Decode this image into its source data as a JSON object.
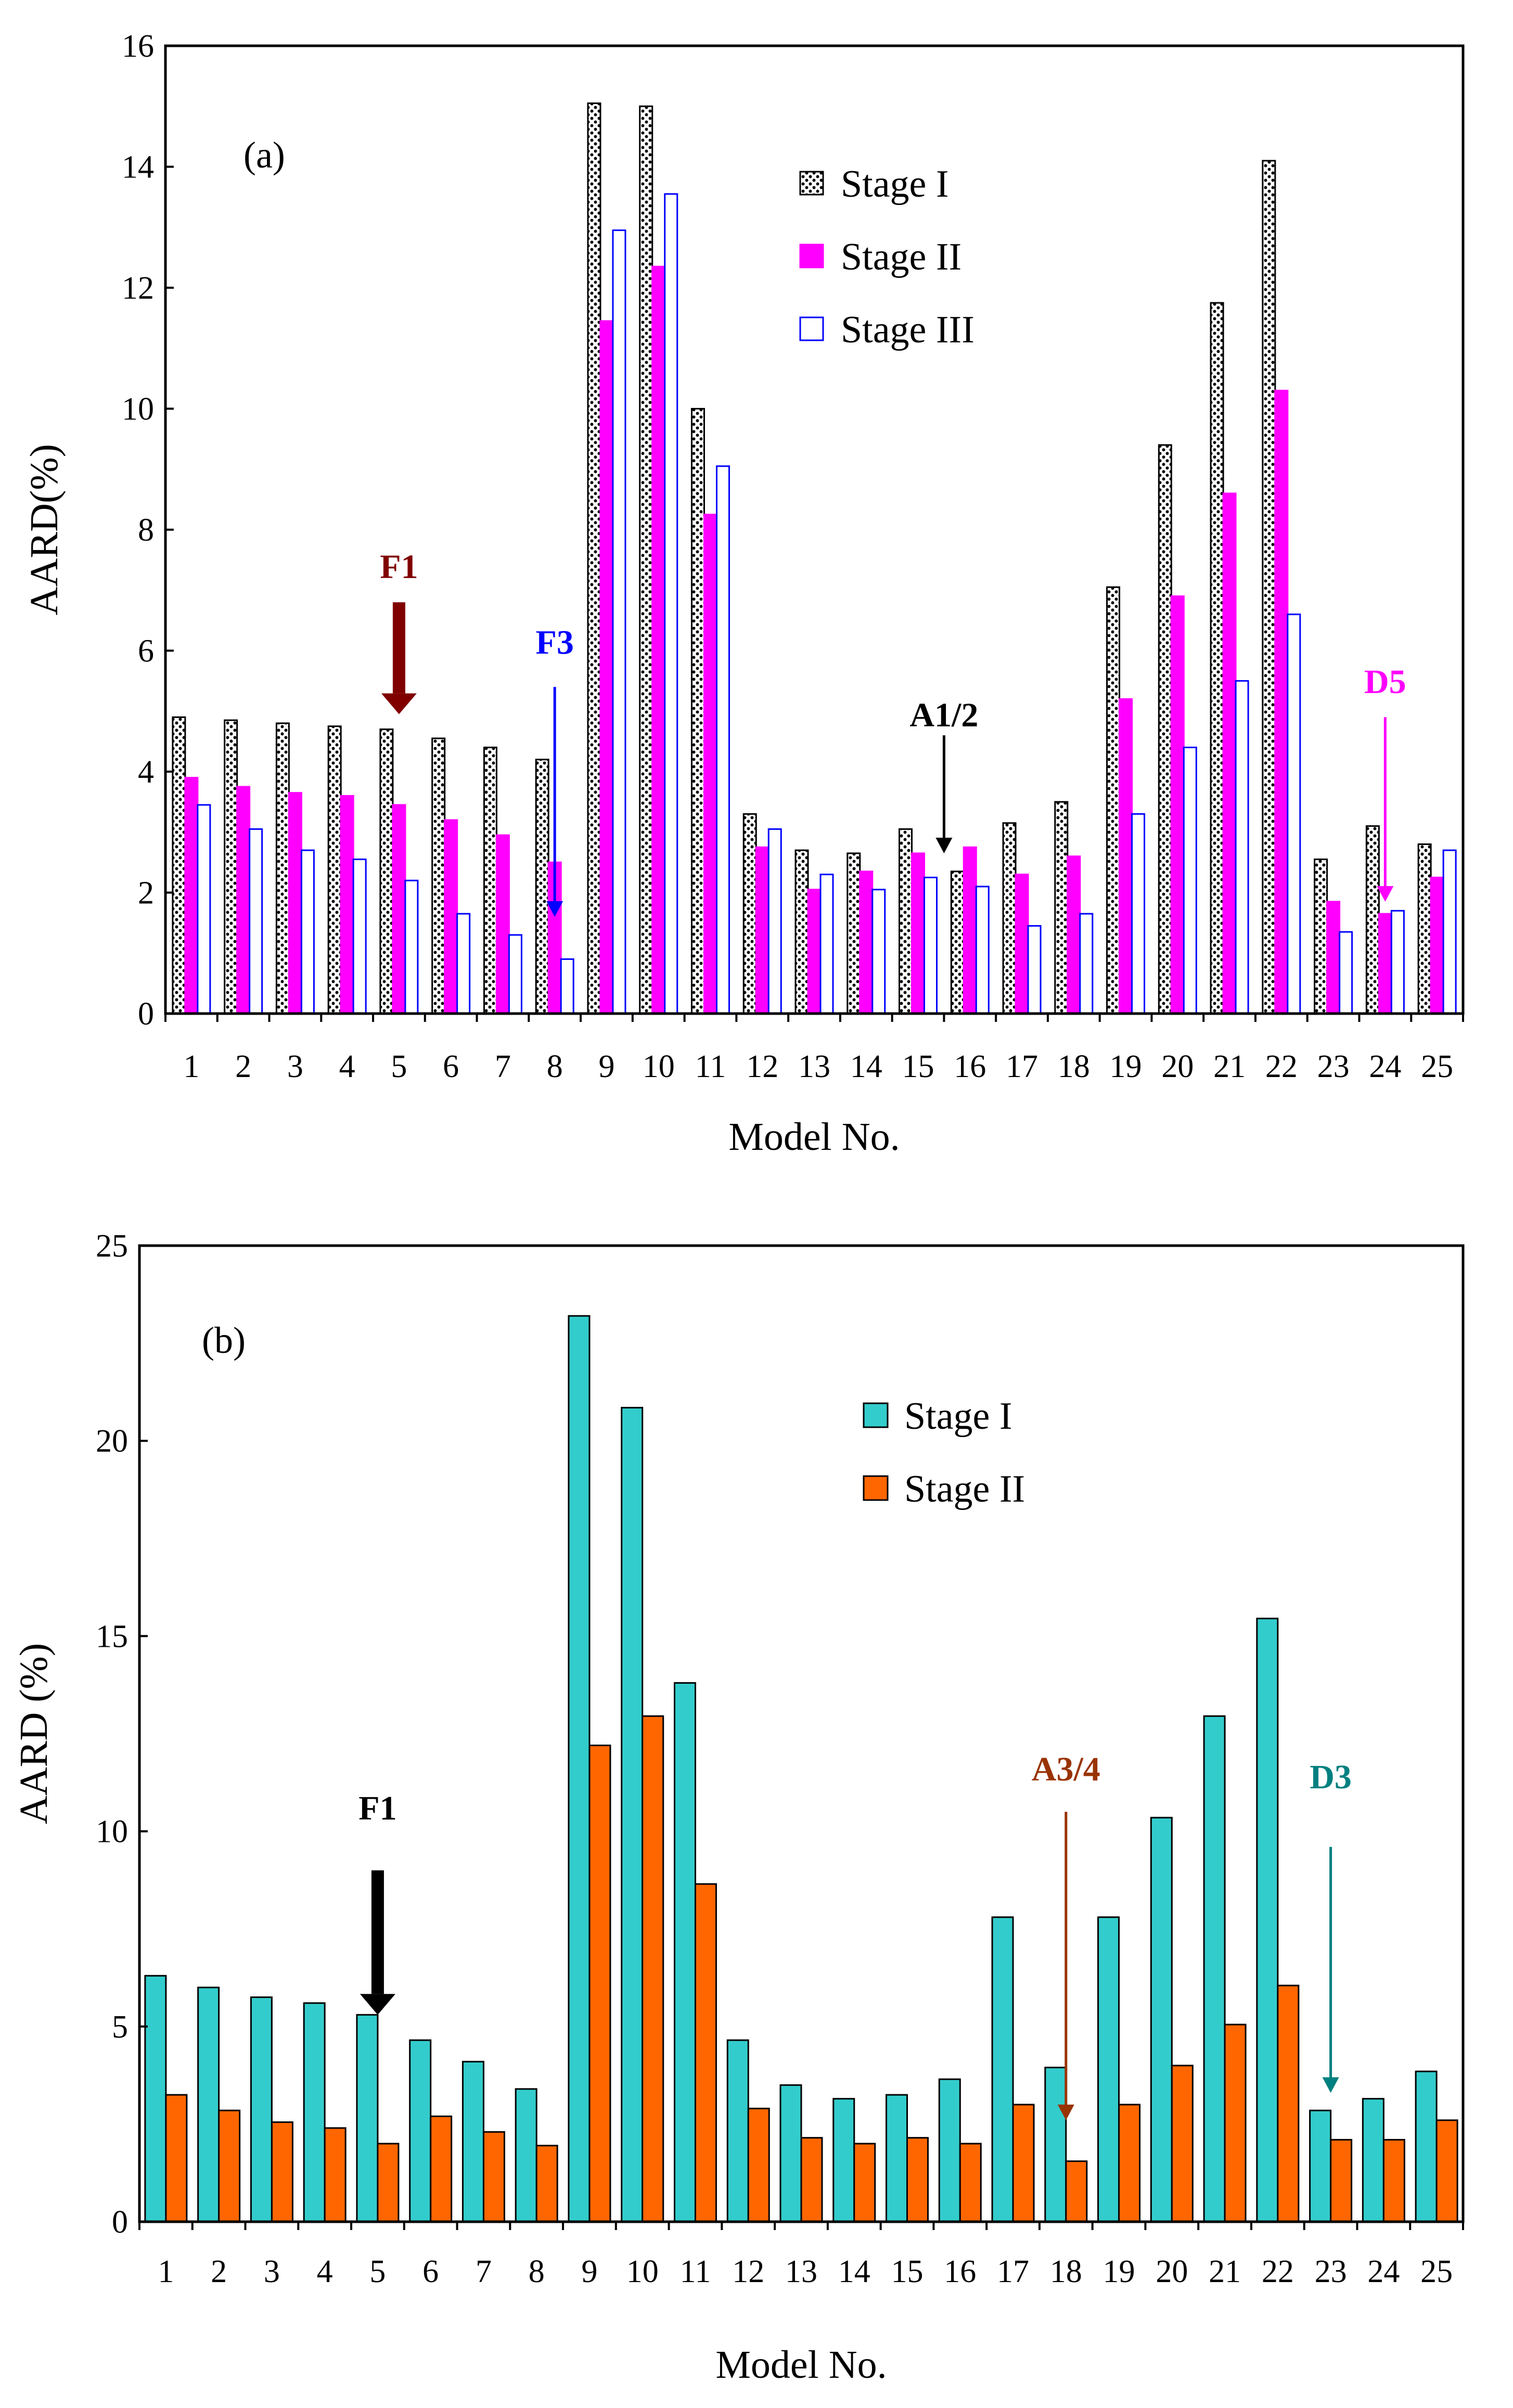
{
  "chart_data": [
    {
      "type": "bar",
      "panel_label": "(a)",
      "categories": [
        "1",
        "2",
        "3",
        "4",
        "5",
        "6",
        "7",
        "8",
        "9",
        "10",
        "11",
        "12",
        "13",
        "14",
        "15",
        "16",
        "17",
        "18",
        "19",
        "20",
        "21",
        "22",
        "23",
        "24",
        "25"
      ],
      "series": [
        {
          "name": "Stage I",
          "fill": "pattern-dots",
          "stroke": "#000000",
          "values": [
            4.9,
            4.85,
            4.8,
            4.75,
            4.7,
            4.55,
            4.4,
            4.2,
            15.05,
            15.0,
            10.0,
            3.3,
            2.7,
            2.65,
            3.05,
            2.35,
            3.15,
            3.5,
            7.05,
            9.4,
            11.75,
            14.1,
            2.55,
            3.1,
            2.8
          ]
        },
        {
          "name": "Stage II",
          "fill": "#FF00FF",
          "stroke": "#FF00FF",
          "values": [
            3.9,
            3.75,
            3.65,
            3.6,
            3.45,
            3.2,
            2.95,
            2.5,
            11.45,
            12.35,
            8.25,
            2.75,
            2.05,
            2.35,
            2.65,
            2.75,
            2.3,
            2.6,
            5.2,
            6.9,
            8.6,
            10.3,
            1.85,
            1.65,
            2.25
          ]
        },
        {
          "name": "Stage III",
          "fill": "#FFFFFF",
          "stroke": "#0000FF",
          "values": [
            3.45,
            3.05,
            2.7,
            2.55,
            2.2,
            1.65,
            1.3,
            0.9,
            12.95,
            13.55,
            9.05,
            3.05,
            2.3,
            2.05,
            2.25,
            2.1,
            1.45,
            1.65,
            3.3,
            4.4,
            5.5,
            6.6,
            1.35,
            1.7,
            2.7
          ]
        }
      ],
      "xlabel": "Model No.",
      "ylabel": "AARD(%)",
      "ylim": [
        0,
        16
      ],
      "yticks": [
        "0",
        "2",
        "4",
        "6",
        "8",
        "10",
        "12",
        "14",
        "16"
      ],
      "legend_position": "top-center",
      "annotations": [
        {
          "text": "F1",
          "category": 5,
          "color": "#800000",
          "style": "thick",
          "y_text": 7.2,
          "y_start": 6.8,
          "y_end": 4.95
        },
        {
          "text": "F3",
          "category": 8,
          "color": "#0000FF",
          "style": "thin",
          "y_text": 5.95,
          "y_start": 5.4,
          "y_end": 1.6
        },
        {
          "text": "A1/2",
          "category": 15.5,
          "color": "#000000",
          "style": "thin",
          "y_text": 4.75,
          "y_start": 4.6,
          "y_end": 2.65
        },
        {
          "text": "D5",
          "category": 24,
          "color": "#FF00FF",
          "style": "thin",
          "y_text": 5.3,
          "y_start": 4.9,
          "y_end": 1.85
        }
      ]
    },
    {
      "type": "bar",
      "panel_label": "(b)",
      "categories": [
        "1",
        "2",
        "3",
        "4",
        "5",
        "6",
        "7",
        "8",
        "9",
        "10",
        "11",
        "12",
        "13",
        "14",
        "15",
        "16",
        "17",
        "18",
        "19",
        "20",
        "21",
        "22",
        "23",
        "24",
        "25"
      ],
      "series": [
        {
          "name": "Stage I",
          "fill": "#33CCCC",
          "stroke": "#000000",
          "values": [
            6.3,
            6.0,
            5.75,
            5.6,
            5.3,
            4.65,
            4.1,
            3.4,
            23.2,
            20.85,
            13.8,
            4.65,
            3.5,
            3.15,
            3.25,
            3.65,
            7.8,
            3.95,
            7.8,
            10.35,
            12.95,
            15.45,
            2.85,
            3.15,
            3.85
          ]
        },
        {
          "name": "Stage II",
          "fill": "#FF6600",
          "stroke": "#000000",
          "values": [
            3.25,
            2.85,
            2.55,
            2.4,
            2.0,
            2.7,
            2.3,
            1.95,
            12.2,
            12.95,
            8.65,
            2.9,
            2.15,
            2.0,
            2.15,
            2.0,
            3.0,
            1.55,
            3.0,
            4.0,
            5.05,
            6.05,
            2.1,
            2.1,
            2.6
          ]
        }
      ],
      "xlabel": "Model No.",
      "ylabel": "AARD (%)",
      "ylim": [
        0,
        25
      ],
      "yticks": [
        "0",
        "5",
        "10",
        "15",
        "20",
        "25"
      ],
      "legend_position": "top-center",
      "annotations": [
        {
          "text": "F1",
          "category": 5,
          "color": "#000000",
          "style": "thick",
          "y_text": 10.3,
          "y_start": 9.0,
          "y_end": 5.3
        },
        {
          "text": "A3/4",
          "category": 18,
          "color": "#993300",
          "style": "thin",
          "y_text": 11.3,
          "y_start": 10.5,
          "y_end": 2.6
        },
        {
          "text": "D3",
          "category": 23,
          "color": "#008080",
          "style": "thin",
          "y_text": 11.1,
          "y_start": 9.6,
          "y_end": 3.3
        }
      ]
    }
  ]
}
